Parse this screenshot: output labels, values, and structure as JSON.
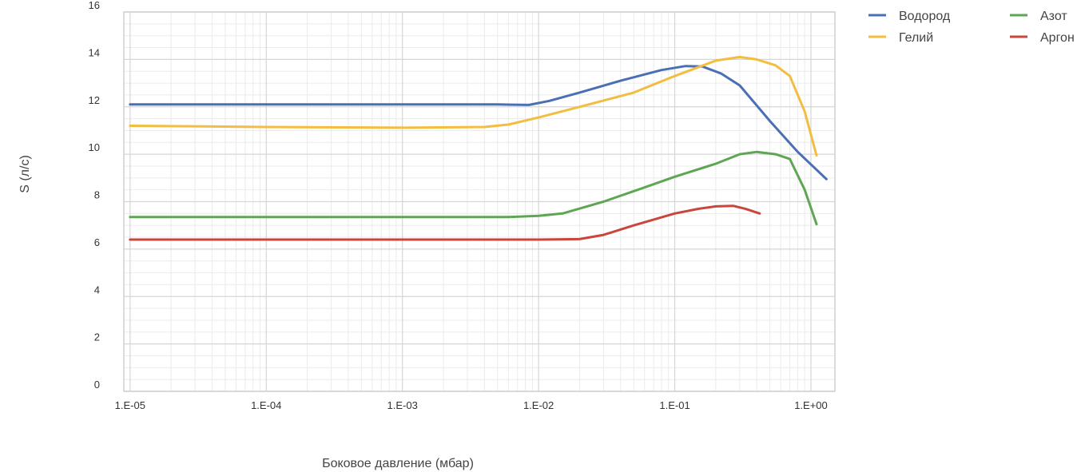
{
  "chart_data": {
    "type": "line",
    "xlabel": "Боковое давление (мбар)",
    "ylabel": "S (л/с)",
    "x_scale": "log",
    "xlim": [
      9e-06,
      1.5
    ],
    "ylim": [
      0,
      16
    ],
    "x_tick_values": [
      1e-05,
      0.0001,
      0.001,
      0.01,
      0.1,
      1
    ],
    "x_tick_labels": [
      "1.E-05",
      "1.E-04",
      "1.E-03",
      "1.E-02",
      "1.E-01",
      "1.E+00"
    ],
    "y_ticks": [
      0,
      2,
      4,
      6,
      8,
      10,
      12,
      14,
      16
    ],
    "grid": true,
    "legend_position": "top-right",
    "series": [
      {
        "name": "Водород",
        "color": "#4a6fb5",
        "points": [
          [
            1e-05,
            12.1
          ],
          [
            0.0001,
            12.1
          ],
          [
            0.001,
            12.1
          ],
          [
            0.005,
            12.1
          ],
          [
            0.0085,
            12.08
          ],
          [
            0.012,
            12.25
          ],
          [
            0.02,
            12.6
          ],
          [
            0.04,
            13.1
          ],
          [
            0.08,
            13.55
          ],
          [
            0.12,
            13.72
          ],
          [
            0.16,
            13.7
          ],
          [
            0.22,
            13.4
          ],
          [
            0.3,
            12.9
          ],
          [
            0.5,
            11.4
          ],
          [
            0.8,
            10.1
          ],
          [
            1.3,
            8.95
          ]
        ]
      },
      {
        "name": "Гелий",
        "color": "#f2be42",
        "points": [
          [
            1e-05,
            11.2
          ],
          [
            0.0001,
            11.15
          ],
          [
            0.001,
            11.12
          ],
          [
            0.004,
            11.15
          ],
          [
            0.006,
            11.25
          ],
          [
            0.01,
            11.55
          ],
          [
            0.02,
            12.0
          ],
          [
            0.05,
            12.6
          ],
          [
            0.1,
            13.3
          ],
          [
            0.2,
            13.95
          ],
          [
            0.3,
            14.1
          ],
          [
            0.4,
            14.0
          ],
          [
            0.55,
            13.75
          ],
          [
            0.7,
            13.3
          ],
          [
            0.9,
            11.8
          ],
          [
            1.1,
            9.95
          ]
        ]
      },
      {
        "name": "Азот",
        "color": "#5ea653",
        "points": [
          [
            1e-05,
            7.35
          ],
          [
            0.0001,
            7.35
          ],
          [
            0.001,
            7.35
          ],
          [
            0.006,
            7.35
          ],
          [
            0.01,
            7.4
          ],
          [
            0.015,
            7.5
          ],
          [
            0.03,
            8.0
          ],
          [
            0.06,
            8.6
          ],
          [
            0.1,
            9.05
          ],
          [
            0.2,
            9.6
          ],
          [
            0.3,
            10.0
          ],
          [
            0.4,
            10.1
          ],
          [
            0.55,
            10.0
          ],
          [
            0.7,
            9.8
          ],
          [
            0.9,
            8.5
          ],
          [
            1.1,
            7.05
          ]
        ]
      },
      {
        "name": "Аргон",
        "color": "#c8463c",
        "points": [
          [
            1e-05,
            6.4
          ],
          [
            0.0001,
            6.4
          ],
          [
            0.001,
            6.4
          ],
          [
            0.01,
            6.4
          ],
          [
            0.02,
            6.42
          ],
          [
            0.03,
            6.6
          ],
          [
            0.05,
            7.0
          ],
          [
            0.1,
            7.5
          ],
          [
            0.15,
            7.7
          ],
          [
            0.2,
            7.8
          ],
          [
            0.27,
            7.82
          ],
          [
            0.33,
            7.7
          ],
          [
            0.42,
            7.5
          ]
        ]
      }
    ]
  }
}
